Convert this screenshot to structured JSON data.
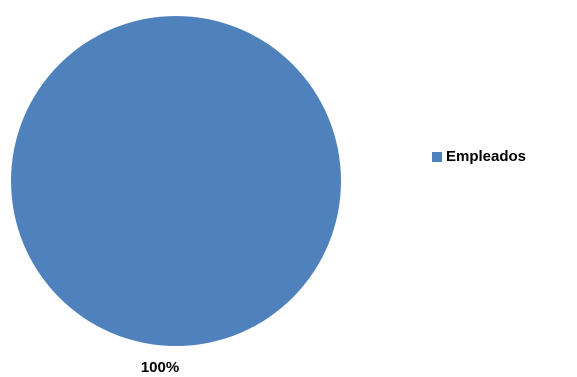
{
  "chart_data": {
    "type": "pie",
    "categories": [
      "Empleados"
    ],
    "values": [
      100
    ],
    "value_labels": [
      "100%"
    ],
    "colors": [
      "#4f81bd"
    ],
    "legend": "right"
  }
}
